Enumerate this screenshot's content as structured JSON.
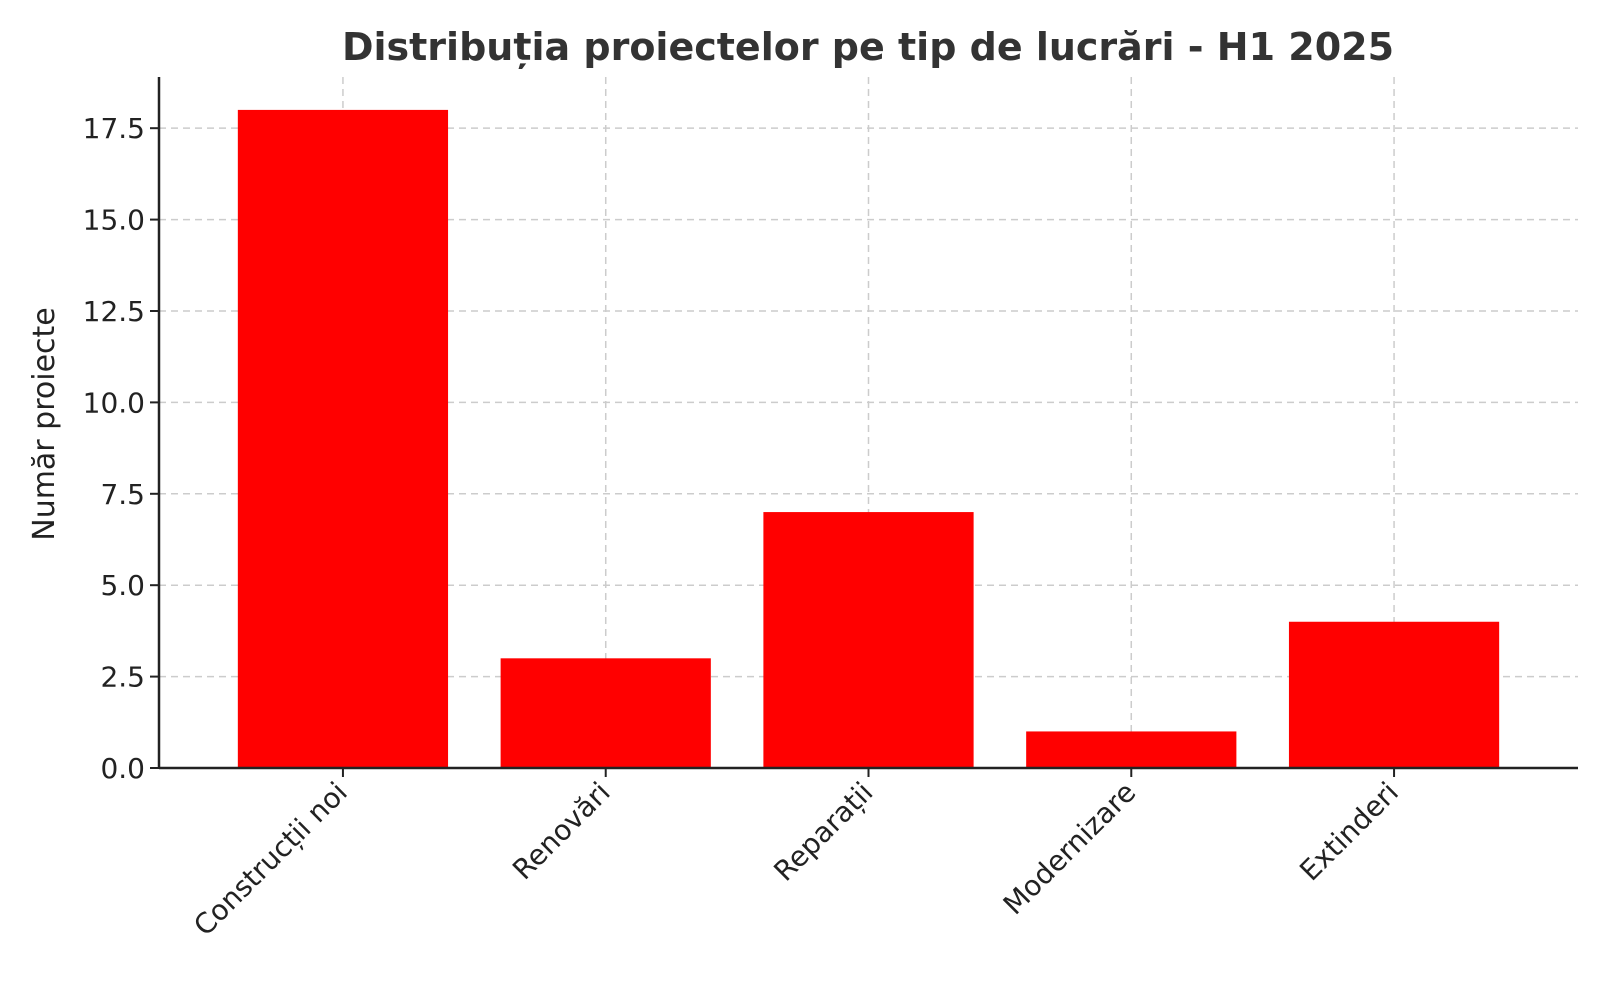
{
  "chart_data": {
    "type": "bar",
    "title": "Distribuția proiectelor pe tip de lucrări - H1 2025",
    "xlabel": "",
    "ylabel": "Număr proiecte",
    "categories": [
      "Construcții noi",
      "Renovări",
      "Reparații",
      "Modernizare",
      "Extinderi"
    ],
    "values": [
      18,
      3,
      7,
      1,
      4
    ],
    "ylim": [
      0,
      18.9
    ],
    "yticks": [
      "0.0",
      "2.5",
      "5.0",
      "7.5",
      "10.0",
      "12.5",
      "15.0",
      "17.5"
    ],
    "grid": true,
    "bar_color": "#ff0000"
  }
}
